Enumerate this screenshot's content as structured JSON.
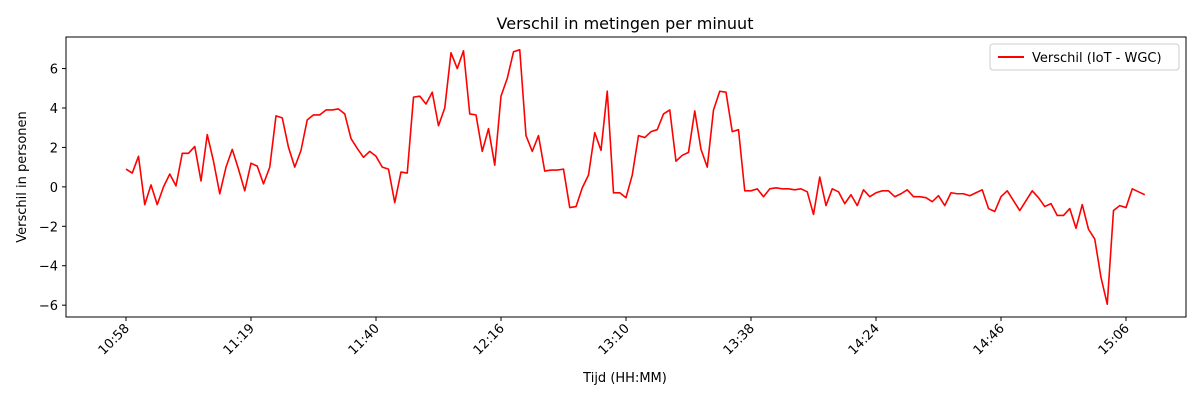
{
  "chart_data": {
    "type": "line",
    "title": "Verschil in metingen per minuut",
    "xlabel": "Tijd (HH:MM)",
    "ylabel": "Verschil in personen",
    "ylim": [
      -6.6,
      7.6
    ],
    "xlim": [
      -9.6,
      169.6
    ],
    "yticks": [
      -6,
      -4,
      -2,
      0,
      2,
      4,
      6
    ],
    "xticks": [
      {
        "pos": 0,
        "label": "10:58"
      },
      {
        "pos": 20,
        "label": "11:19"
      },
      {
        "pos": 40,
        "label": "11:40"
      },
      {
        "pos": 60,
        "label": "12:16"
      },
      {
        "pos": 80,
        "label": "13:10"
      },
      {
        "pos": 100,
        "label": "13:38"
      },
      {
        "pos": 120,
        "label": "14:24"
      },
      {
        "pos": 140,
        "label": "14:46"
      },
      {
        "pos": 160,
        "label": "15:06"
      }
    ],
    "x_tick_rotation": 45,
    "grid": false,
    "legend": "top-right",
    "series": [
      {
        "name": "Verschil (IoT - WGC)",
        "color": "#ff0000",
        "values": [
          0.9,
          0.7,
          1.55,
          -0.9,
          0.1,
          -0.9,
          0.0,
          0.65,
          0.05,
          1.7,
          1.7,
          2.05,
          0.3,
          2.65,
          1.3,
          -0.35,
          1.0,
          1.9,
          0.9,
          -0.2,
          1.2,
          1.05,
          0.15,
          1.0,
          3.6,
          3.5,
          2.0,
          1.0,
          1.85,
          3.4,
          3.65,
          3.65,
          3.9,
          3.9,
          3.95,
          3.7,
          2.45,
          1.95,
          1.5,
          1.8,
          1.55,
          1.0,
          0.9,
          -0.8,
          0.75,
          0.7,
          4.55,
          4.6,
          4.2,
          4.8,
          3.1,
          4.0,
          6.8,
          6.0,
          6.9,
          3.7,
          3.65,
          1.8,
          2.95,
          1.1,
          4.6,
          5.5,
          6.85,
          6.95,
          2.6,
          1.8,
          2.6,
          0.8,
          0.85,
          0.85,
          0.9,
          -1.05,
          -1.0,
          -0.05,
          0.6,
          2.75,
          1.85,
          4.85,
          -0.3,
          -0.3,
          -0.55,
          0.6,
          2.6,
          2.5,
          2.8,
          2.9,
          3.7,
          3.9,
          1.3,
          1.6,
          1.75,
          3.85,
          1.9,
          1.0,
          3.9,
          4.85,
          4.8,
          2.8,
          2.9,
          -0.2,
          -0.2,
          -0.1,
          -0.5,
          -0.1,
          -0.05,
          -0.1,
          -0.1,
          -0.15,
          -0.1,
          -0.25,
          -1.4,
          0.5,
          -0.95,
          -0.1,
          -0.25,
          -0.85,
          -0.4,
          -0.95,
          -0.15,
          -0.5,
          -0.3,
          -0.2,
          -0.2,
          -0.5,
          -0.35,
          -0.15,
          -0.5,
          -0.5,
          -0.55,
          -0.75,
          -0.45,
          -0.95,
          -0.3,
          -0.35,
          -0.35,
          -0.45,
          -0.3,
          -0.15,
          -1.1,
          -1.25,
          -0.5,
          -0.2,
          -0.7,
          -1.2,
          -0.7,
          -0.2,
          -0.55,
          -1.0,
          -0.85,
          -1.45,
          -1.45,
          -1.1,
          -2.1,
          -0.9,
          -2.15,
          -2.65,
          -4.6,
          -5.95,
          -1.2,
          -0.95,
          -1.05,
          -0.1,
          -0.25,
          -0.4
        ]
      }
    ]
  }
}
